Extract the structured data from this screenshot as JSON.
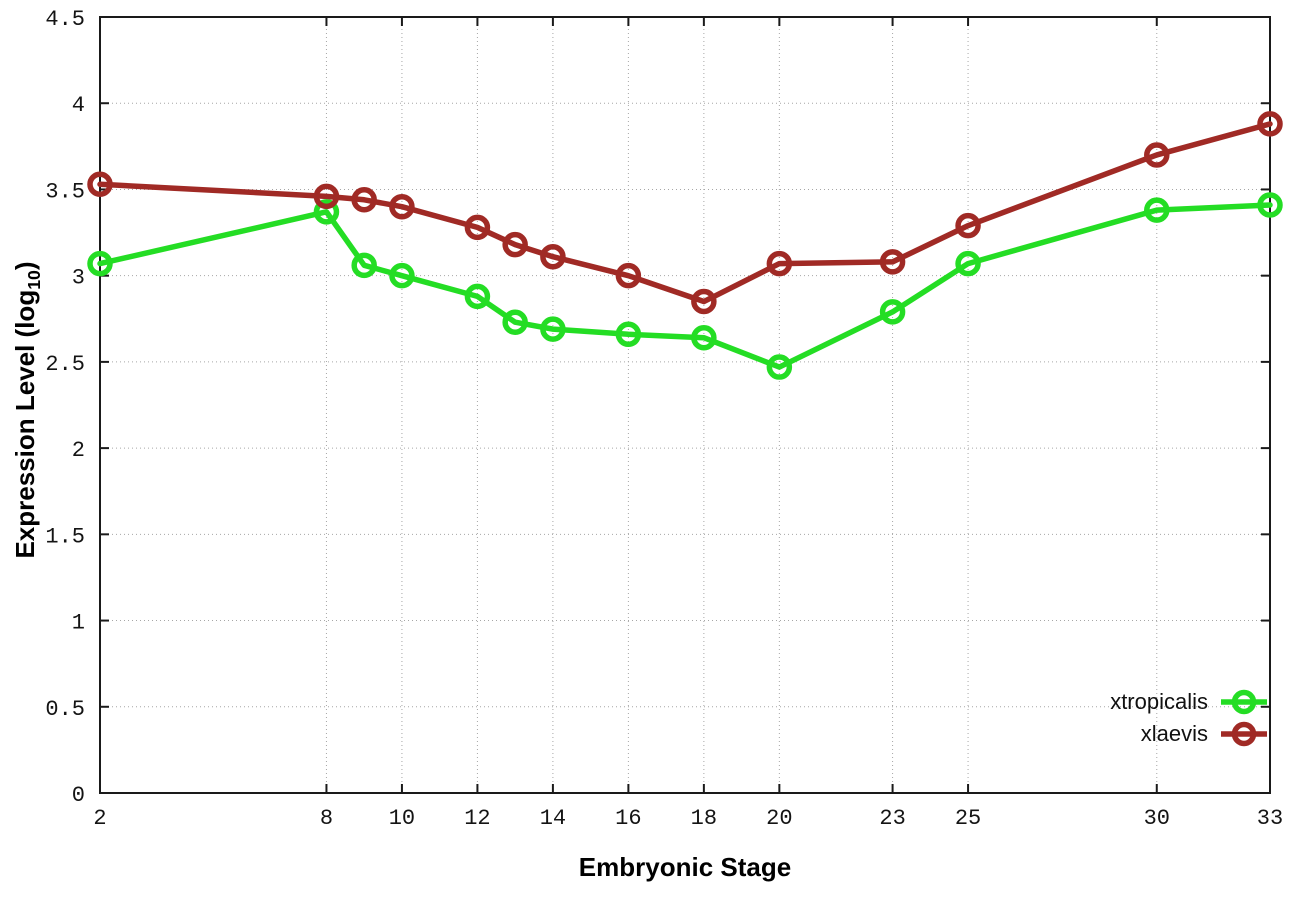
{
  "figure": {
    "background": "#ffffff",
    "border_color": "#1a1a1a",
    "grid_color": "#a6a6a6",
    "tick_label_color": "#141414"
  },
  "chart_data": {
    "type": "line",
    "title": "",
    "xlabel": "Embryonic Stage",
    "ylabel": "Expression Level (log10)",
    "ylabel_parts": {
      "prefix": "Expression Level (log",
      "subscript": "10",
      "suffix": ")"
    },
    "xlim": [
      2,
      33
    ],
    "ylim": [
      0,
      4.5
    ],
    "grid": true,
    "legend_position": "bottom-right",
    "x_ticks": [
      2,
      8,
      10,
      12,
      14,
      16,
      18,
      20,
      23,
      25,
      30,
      33
    ],
    "x_tick_labels": [
      "2",
      "8",
      "10",
      "12",
      "14",
      "16",
      "18",
      "20",
      "23",
      "25",
      "30",
      "33"
    ],
    "y_ticks": [
      0,
      0.5,
      1,
      1.5,
      2,
      2.5,
      3,
      3.5,
      4,
      4.5
    ],
    "y_tick_labels": [
      "0",
      "0.5",
      "1",
      "1.5",
      "2",
      "2.5",
      "3",
      "3.5",
      "4",
      "4.5"
    ],
    "x": [
      2,
      8,
      9,
      10,
      12,
      13,
      14,
      16,
      18,
      20,
      23,
      25,
      30,
      33
    ],
    "series": [
      {
        "name": "xtropicalis",
        "color": "#24dd24",
        "values": [
          3.07,
          3.37,
          3.06,
          3.0,
          2.88,
          2.73,
          2.69,
          2.66,
          2.64,
          2.47,
          2.79,
          3.07,
          3.38,
          3.41
        ]
      },
      {
        "name": "xlaevis",
        "color": "#a02a25",
        "values": [
          3.53,
          3.46,
          3.44,
          3.4,
          3.28,
          3.18,
          3.11,
          3.0,
          2.85,
          3.07,
          3.08,
          3.29,
          3.7,
          3.88
        ]
      }
    ]
  }
}
